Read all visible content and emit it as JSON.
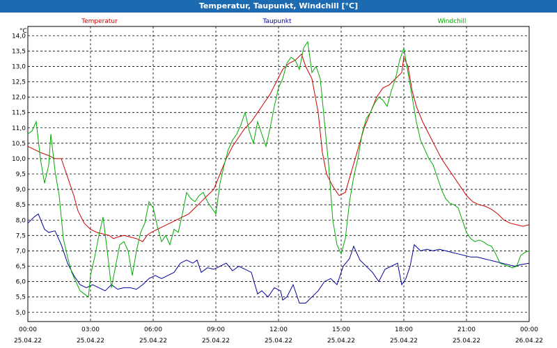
{
  "window": {
    "title": "Temperatur, Taupunkt, Windchill [°C]"
  },
  "chart_data": {
    "type": "line",
    "title": "Temperatur, Taupunkt, Windchill [°C]",
    "ylabel": "°C",
    "ylim": [
      4.7,
      14.3
    ],
    "xlim": [
      0,
      24
    ],
    "grid": true,
    "legend": "top",
    "y_ticks": [
      "5,0",
      "5,5",
      "6,0",
      "6,5",
      "7,0",
      "7,5",
      "8,0",
      "8,5",
      "9,0",
      "9,5",
      "10,0",
      "10,5",
      "11,0",
      "11,5",
      "12,0",
      "12,5",
      "13,0",
      "13,5",
      "14,0"
    ],
    "x_ticks": [
      {
        "time": "00:00",
        "date": "25.04.22"
      },
      {
        "time": "03:00",
        "date": "25.04.22"
      },
      {
        "time": "06:00",
        "date": "25.04.22"
      },
      {
        "time": "09:00",
        "date": "25.04.22"
      },
      {
        "time": "12:00",
        "date": "25.04.22"
      },
      {
        "time": "15:00",
        "date": "25.04.22"
      },
      {
        "time": "18:00",
        "date": "25.04.22"
      },
      {
        "time": "21:00",
        "date": "25.04.22"
      },
      {
        "time": "00:00",
        "date": "26.04.22"
      }
    ],
    "series": [
      {
        "name": "Temperatur",
        "color": "#cc0000",
        "points": [
          [
            0,
            10.4
          ],
          [
            0.3,
            10.3
          ],
          [
            0.6,
            10.2
          ],
          [
            1.0,
            10.1
          ],
          [
            1.3,
            10.0
          ],
          [
            1.6,
            10.0
          ],
          [
            1.8,
            9.6
          ],
          [
            2.0,
            9.2
          ],
          [
            2.2,
            8.8
          ],
          [
            2.4,
            8.3
          ],
          [
            2.7,
            7.9
          ],
          [
            3.0,
            7.7
          ],
          [
            3.3,
            7.6
          ],
          [
            3.6,
            7.55
          ],
          [
            3.9,
            7.5
          ],
          [
            4.1,
            7.4
          ],
          [
            4.3,
            7.45
          ],
          [
            4.6,
            7.5
          ],
          [
            4.9,
            7.45
          ],
          [
            5.2,
            7.4
          ],
          [
            5.5,
            7.3
          ],
          [
            5.7,
            7.5
          ],
          [
            5.9,
            7.6
          ],
          [
            6.2,
            7.7
          ],
          [
            6.5,
            7.8
          ],
          [
            6.8,
            7.9
          ],
          [
            7.1,
            8.0
          ],
          [
            7.4,
            8.1
          ],
          [
            7.7,
            8.2
          ],
          [
            8.0,
            8.4
          ],
          [
            8.3,
            8.6
          ],
          [
            8.6,
            8.8
          ],
          [
            8.9,
            9.0
          ],
          [
            9.2,
            9.5
          ],
          [
            9.5,
            10.0
          ],
          [
            9.8,
            10.4
          ],
          [
            10.1,
            10.7
          ],
          [
            10.4,
            11.0
          ],
          [
            10.7,
            11.2
          ],
          [
            11.0,
            11.5
          ],
          [
            11.3,
            11.8
          ],
          [
            11.6,
            12.1
          ],
          [
            11.9,
            12.5
          ],
          [
            12.2,
            12.9
          ],
          [
            12.5,
            13.1
          ],
          [
            12.8,
            13.2
          ],
          [
            13.1,
            13.4
          ],
          [
            13.3,
            13.0
          ],
          [
            13.6,
            12.6
          ],
          [
            13.9,
            11.5
          ],
          [
            14.1,
            10.2
          ],
          [
            14.3,
            9.5
          ],
          [
            14.6,
            9.1
          ],
          [
            14.9,
            8.8
          ],
          [
            15.2,
            8.9
          ],
          [
            15.5,
            9.6
          ],
          [
            15.8,
            10.3
          ],
          [
            16.1,
            11.0
          ],
          [
            16.4,
            11.5
          ],
          [
            16.7,
            12.0
          ],
          [
            17.0,
            12.3
          ],
          [
            17.3,
            12.4
          ],
          [
            17.6,
            12.6
          ],
          [
            17.9,
            12.8
          ],
          [
            18.0,
            13.3
          ],
          [
            18.2,
            13.0
          ],
          [
            18.4,
            12.2
          ],
          [
            18.6,
            11.7
          ],
          [
            18.9,
            11.2
          ],
          [
            19.2,
            10.8
          ],
          [
            19.5,
            10.4
          ],
          [
            19.8,
            10.0
          ],
          [
            20.1,
            9.7
          ],
          [
            20.4,
            9.4
          ],
          [
            20.7,
            9.1
          ],
          [
            21.0,
            8.8
          ],
          [
            21.3,
            8.6
          ],
          [
            21.6,
            8.5
          ],
          [
            21.9,
            8.45
          ],
          [
            22.2,
            8.35
          ],
          [
            22.5,
            8.2
          ],
          [
            22.8,
            8.0
          ],
          [
            23.1,
            7.9
          ],
          [
            23.4,
            7.85
          ],
          [
            23.7,
            7.8
          ],
          [
            24.0,
            7.85
          ]
        ]
      },
      {
        "name": "Taupunkt",
        "color": "#000099",
        "points": [
          [
            0,
            7.9
          ],
          [
            0.3,
            8.1
          ],
          [
            0.5,
            8.2
          ],
          [
            0.8,
            7.7
          ],
          [
            1.0,
            7.6
          ],
          [
            1.3,
            7.65
          ],
          [
            1.6,
            7.2
          ],
          [
            1.9,
            6.6
          ],
          [
            2.2,
            6.2
          ],
          [
            2.5,
            5.9
          ],
          [
            2.8,
            5.8
          ],
          [
            3.1,
            5.9
          ],
          [
            3.4,
            5.8
          ],
          [
            3.7,
            5.7
          ],
          [
            4.0,
            5.9
          ],
          [
            4.3,
            5.75
          ],
          [
            4.6,
            5.8
          ],
          [
            4.9,
            5.8
          ],
          [
            5.2,
            5.75
          ],
          [
            5.5,
            5.9
          ],
          [
            5.8,
            6.1
          ],
          [
            6.1,
            6.2
          ],
          [
            6.4,
            6.1
          ],
          [
            6.7,
            6.2
          ],
          [
            7.0,
            6.3
          ],
          [
            7.3,
            6.6
          ],
          [
            7.6,
            6.7
          ],
          [
            7.9,
            6.6
          ],
          [
            8.1,
            6.7
          ],
          [
            8.3,
            6.3
          ],
          [
            8.6,
            6.45
          ],
          [
            8.9,
            6.4
          ],
          [
            9.2,
            6.5
          ],
          [
            9.5,
            6.6
          ],
          [
            9.8,
            6.35
          ],
          [
            10.1,
            6.5
          ],
          [
            10.4,
            6.4
          ],
          [
            10.7,
            6.3
          ],
          [
            11.0,
            5.6
          ],
          [
            11.2,
            5.7
          ],
          [
            11.5,
            5.5
          ],
          [
            11.8,
            5.8
          ],
          [
            12.1,
            5.7
          ],
          [
            12.2,
            5.4
          ],
          [
            12.4,
            5.5
          ],
          [
            12.7,
            5.9
          ],
          [
            13.0,
            5.3
          ],
          [
            13.3,
            5.3
          ],
          [
            13.6,
            5.5
          ],
          [
            13.9,
            5.7
          ],
          [
            14.2,
            6.0
          ],
          [
            14.5,
            6.1
          ],
          [
            14.8,
            5.9
          ],
          [
            15.1,
            6.5
          ],
          [
            15.4,
            6.75
          ],
          [
            15.6,
            7.15
          ],
          [
            15.9,
            6.7
          ],
          [
            16.2,
            6.5
          ],
          [
            16.5,
            6.3
          ],
          [
            16.8,
            6.0
          ],
          [
            17.1,
            6.4
          ],
          [
            17.4,
            6.5
          ],
          [
            17.7,
            6.6
          ],
          [
            17.9,
            5.9
          ],
          [
            18.1,
            6.1
          ],
          [
            18.3,
            6.5
          ],
          [
            18.5,
            7.2
          ],
          [
            18.8,
            7.0
          ],
          [
            19.1,
            7.05
          ],
          [
            19.4,
            7.0
          ],
          [
            19.7,
            7.05
          ],
          [
            20.0,
            7.0
          ],
          [
            20.3,
            6.95
          ],
          [
            20.6,
            6.9
          ],
          [
            20.9,
            6.85
          ],
          [
            21.2,
            6.8
          ],
          [
            21.5,
            6.8
          ],
          [
            21.8,
            6.75
          ],
          [
            22.1,
            6.7
          ],
          [
            22.4,
            6.65
          ],
          [
            22.7,
            6.6
          ],
          [
            23.0,
            6.55
          ],
          [
            23.3,
            6.5
          ],
          [
            23.6,
            6.55
          ],
          [
            24.0,
            6.6
          ]
        ]
      },
      {
        "name": "Windchill",
        "color": "#00aa00",
        "points": [
          [
            0,
            10.8
          ],
          [
            0.2,
            10.9
          ],
          [
            0.4,
            11.2
          ],
          [
            0.6,
            10.0
          ],
          [
            0.8,
            9.2
          ],
          [
            1.0,
            9.8
          ],
          [
            1.1,
            10.8
          ],
          [
            1.3,
            9.6
          ],
          [
            1.5,
            8.8
          ],
          [
            1.7,
            7.4
          ],
          [
            1.9,
            6.8
          ],
          [
            2.1,
            6.3
          ],
          [
            2.3,
            6.0
          ],
          [
            2.5,
            5.7
          ],
          [
            2.7,
            5.6
          ],
          [
            2.9,
            5.5
          ],
          [
            3.0,
            6.2
          ],
          [
            3.2,
            6.8
          ],
          [
            3.4,
            7.5
          ],
          [
            3.6,
            8.1
          ],
          [
            3.8,
            7.0
          ],
          [
            4.0,
            5.8
          ],
          [
            4.2,
            6.5
          ],
          [
            4.4,
            7.2
          ],
          [
            4.6,
            7.3
          ],
          [
            4.8,
            7.0
          ],
          [
            5.0,
            6.2
          ],
          [
            5.2,
            7.0
          ],
          [
            5.4,
            7.6
          ],
          [
            5.6,
            7.9
          ],
          [
            5.8,
            8.6
          ],
          [
            6.0,
            8.4
          ],
          [
            6.2,
            7.8
          ],
          [
            6.4,
            7.3
          ],
          [
            6.6,
            7.5
          ],
          [
            6.8,
            7.2
          ],
          [
            7.0,
            7.7
          ],
          [
            7.2,
            7.6
          ],
          [
            7.4,
            8.2
          ],
          [
            7.6,
            8.9
          ],
          [
            7.8,
            8.7
          ],
          [
            8.0,
            8.6
          ],
          [
            8.2,
            8.8
          ],
          [
            8.4,
            8.9
          ],
          [
            8.6,
            8.6
          ],
          [
            8.8,
            8.4
          ],
          [
            9.0,
            8.2
          ],
          [
            9.2,
            9.2
          ],
          [
            9.4,
            9.8
          ],
          [
            9.6,
            10.3
          ],
          [
            9.8,
            10.6
          ],
          [
            10.0,
            10.8
          ],
          [
            10.2,
            11.1
          ],
          [
            10.4,
            11.5
          ],
          [
            10.6,
            10.9
          ],
          [
            10.8,
            10.5
          ],
          [
            11.0,
            11.2
          ],
          [
            11.2,
            10.8
          ],
          [
            11.4,
            10.4
          ],
          [
            11.6,
            11.0
          ],
          [
            11.8,
            11.7
          ],
          [
            12.0,
            12.3
          ],
          [
            12.2,
            12.6
          ],
          [
            12.4,
            13.1
          ],
          [
            12.6,
            13.3
          ],
          [
            12.8,
            13.2
          ],
          [
            13.0,
            12.9
          ],
          [
            13.2,
            13.6
          ],
          [
            13.4,
            13.8
          ],
          [
            13.6,
            12.8
          ],
          [
            13.8,
            13.0
          ],
          [
            14.0,
            12.6
          ],
          [
            14.2,
            11.2
          ],
          [
            14.4,
            9.8
          ],
          [
            14.6,
            8.0
          ],
          [
            14.8,
            7.2
          ],
          [
            15.0,
            6.9
          ],
          [
            15.2,
            7.4
          ],
          [
            15.4,
            8.6
          ],
          [
            15.6,
            9.4
          ],
          [
            15.8,
            10.0
          ],
          [
            16.0,
            10.8
          ],
          [
            16.2,
            11.3
          ],
          [
            16.4,
            11.5
          ],
          [
            16.6,
            11.8
          ],
          [
            16.8,
            12.0
          ],
          [
            17.0,
            11.9
          ],
          [
            17.2,
            11.7
          ],
          [
            17.4,
            12.2
          ],
          [
            17.6,
            12.6
          ],
          [
            17.8,
            13.2
          ],
          [
            18.0,
            13.6
          ],
          [
            18.2,
            12.8
          ],
          [
            18.4,
            12.0
          ],
          [
            18.6,
            11.2
          ],
          [
            18.8,
            10.6
          ],
          [
            19.0,
            10.3
          ],
          [
            19.2,
            10.0
          ],
          [
            19.4,
            9.8
          ],
          [
            19.6,
            9.4
          ],
          [
            19.8,
            9.0
          ],
          [
            20.0,
            8.7
          ],
          [
            20.2,
            8.55
          ],
          [
            20.4,
            8.5
          ],
          [
            20.6,
            8.4
          ],
          [
            20.8,
            8.0
          ],
          [
            21.0,
            7.6
          ],
          [
            21.2,
            7.4
          ],
          [
            21.4,
            7.3
          ],
          [
            21.6,
            7.35
          ],
          [
            21.8,
            7.3
          ],
          [
            22.0,
            7.2
          ],
          [
            22.2,
            7.15
          ],
          [
            22.4,
            6.9
          ],
          [
            22.6,
            6.6
          ],
          [
            22.8,
            6.55
          ],
          [
            23.0,
            6.5
          ],
          [
            23.2,
            6.45
          ],
          [
            23.4,
            6.5
          ],
          [
            23.6,
            6.85
          ],
          [
            23.8,
            6.95
          ],
          [
            24.0,
            7.0
          ]
        ]
      }
    ]
  }
}
